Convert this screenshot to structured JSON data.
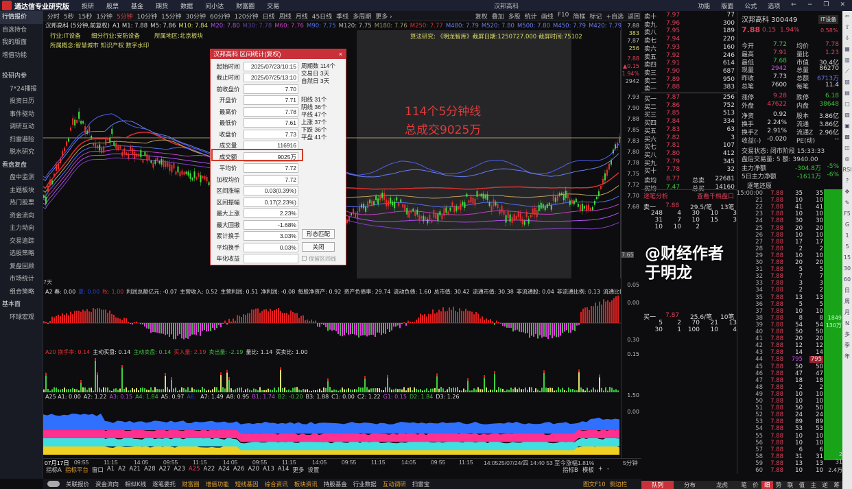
{
  "titlebar": {
    "app": "通达信专业研究版",
    "menus": [
      "投研",
      "股票",
      "基金",
      "期货",
      "数据",
      "问小达",
      "财富圈",
      "交易"
    ],
    "center": "汉邦高科",
    "right": [
      "功能",
      "版面",
      "公式",
      "选项"
    ]
  },
  "sidebar": [
    {
      "label": "行情报价",
      "type": "item",
      "active": true
    },
    {
      "label": "自选持仓",
      "type": "item"
    },
    {
      "label": "我的版面",
      "type": "item"
    },
    {
      "label": "增值功能",
      "type": "item"
    },
    {
      "label": "投研内参",
      "type": "header"
    },
    {
      "label": "7*24播报"
    },
    {
      "label": "投资日历"
    },
    {
      "label": "事件驱动"
    },
    {
      "label": "调研互动"
    },
    {
      "label": "扫雷避险"
    },
    {
      "label": "脱水研究"
    },
    {
      "label": "看盘复盘",
      "type": "header"
    },
    {
      "label": "盘中监测"
    },
    {
      "label": "主题板块"
    },
    {
      "label": "热门股票"
    },
    {
      "label": "资金流向"
    },
    {
      "label": "主力动向"
    },
    {
      "label": "交易追踪"
    },
    {
      "label": "选股策略"
    },
    {
      "label": "复盘回顾"
    },
    {
      "label": "市场统计"
    },
    {
      "label": "组合策略"
    },
    {
      "label": "基本面",
      "type": "header"
    },
    {
      "label": "环球宏观"
    }
  ],
  "periods": {
    "items": [
      "分时",
      "5秒",
      "15秒",
      "1分钟",
      "5分钟",
      "10分钟",
      "15分钟",
      "30分钟",
      "60分钟",
      "120分钟",
      "日线",
      "周线",
      "月线",
      "45日线",
      "季线",
      "多周期",
      "更多 ›"
    ],
    "selected": "5分钟"
  },
  "tools": [
    "复权",
    "叠加",
    "多股",
    "统计",
    "画线",
    "F10",
    "简框",
    "标记",
    "+自选",
    "返回"
  ],
  "infoline": [
    {
      "t": "汉邦高科 (5分钟,前复权)",
      "c": "#dddddd"
    },
    {
      "t": "A1 M1: 7.88",
      "c": "#dddddd"
    },
    {
      "t": "M5: 7.86",
      "c": "#dddddd"
    },
    {
      "t": "M10: 7.84",
      "c": "#d9d96a"
    },
    {
      "t": "M20: 7.80",
      "c": "#b050f0"
    },
    {
      "t": "M30: 7.78",
      "c": "#6040a0"
    },
    {
      "t": "M60: 7.76",
      "c": "#c040c0"
    },
    {
      "t": "M90: 7.75",
      "c": "#5070f0"
    },
    {
      "t": "M120: 7.75",
      "c": "#bbbbbb"
    },
    {
      "t": "M180: 7.76",
      "c": "#999966"
    },
    {
      "t": "M250: 7.77",
      "c": "#e03030"
    },
    {
      "t": "M480: 7.79",
      "c": "#6a7cf0"
    },
    {
      "t": "M520: 7.80",
      "c": "#6a7cf0"
    },
    {
      "t": "M500: 7.80",
      "c": "#6a7cf0"
    },
    {
      "t": "M450: 7.79",
      "c": "#6a7cf0"
    },
    {
      "t": "M420: 7.79",
      "c": "#6a7cf0"
    },
    {
      "t": "M400: 7.79",
      "c": "#6a7cf0"
    },
    {
      "t": "M380: 7",
      "c": "#6a7cf0"
    }
  ],
  "stockinfo": {
    "industry": "行业:IT设备",
    "sub_industry": "细分行业:安防设备",
    "region": "所属地区:北京板块",
    "concepts": "所属概念:智慧城市 知识产权 数字水印",
    "research": "算法研究: 《明龙智库》截屏日期:1250727.000 截屏时间:75102"
  },
  "annotation": {
    "line1": "114个5分钟线",
    "line2": "总成交9025万"
  },
  "price_axis": [
    "7.88",
    "383",
    "7.87",
    "256",
    "7.88",
    "▲0.15",
    "1.94%",
    "2942",
    "7.93",
    "7.90",
    "7.88",
    "7.85",
    "7.83",
    "7.80",
    "7.78",
    "7.75",
    "7.72",
    "7.70",
    "7.68",
    "7.65",
    "0.05",
    "0.00",
    "0.30",
    "0.15",
    "1.50",
    "0.00"
  ],
  "dialog": {
    "title": "汉邦高科 区间统计(复权)",
    "close": "×",
    "rows": [
      {
        "label": "起始时间",
        "value": "2025/07/23/10:15"
      },
      {
        "label": "截止时间",
        "value": "2025/07/25/13:10"
      },
      {
        "label": "前收盘价",
        "value": "7.70"
      },
      {
        "label": "开盘价",
        "value": "7.71"
      },
      {
        "label": "最高价",
        "value": "7.78"
      },
      {
        "label": "最低价",
        "value": "7.61"
      },
      {
        "label": "收盘价",
        "value": "7.73"
      },
      {
        "label": "成交量",
        "value": "116916"
      },
      {
        "label": "成交额",
        "value": "9025万"
      },
      {
        "label": "平均价",
        "value": "7.72"
      },
      {
        "label": "加权均价",
        "value": "7.72"
      },
      {
        "label": "区间涨幅",
        "value": "0.03(0.39%)"
      },
      {
        "label": "区间振幅",
        "value": "0.17(2.23%)"
      },
      {
        "label": "最大上涨",
        "value": "2.23%"
      },
      {
        "label": "最大回撤",
        "value": "-1.68%"
      },
      {
        "label": "累计换手",
        "value": "3.03%"
      },
      {
        "label": "平均换手",
        "value": "0.03%"
      },
      {
        "label": "年化收益",
        "value": ""
      }
    ],
    "side1": [
      "周期数 114个",
      "交易日 3天",
      "自然日 3天"
    ],
    "side2": [
      "阳线 31个",
      "阴线 36个",
      "平线 47个",
      "上涨 37个",
      "下跌 36个",
      "平盘 41个"
    ],
    "btn_match": "形态匹配",
    "btn_close": "关闭",
    "keep_line": "保留区间线"
  },
  "pane_note": "7天",
  "ind_a2": [
    {
      "t": "A2 春: 0.00",
      "c": "#dddddd"
    },
    {
      "t": "夏: 0.00",
      "c": "#2040e0"
    },
    {
      "t": "秋: 1.00",
      "c": "#e03030"
    },
    {
      "t": "利润总额亿元: -0.07",
      "c": "#dddddd"
    },
    {
      "t": "主营收入: 0.52",
      "c": "#dddddd"
    },
    {
      "t": "主营利润: 0.51",
      "c": "#dddddd"
    },
    {
      "t": "净利润: -0.08",
      "c": "#dddddd"
    },
    {
      "t": "每股净资产: 0.92",
      "c": "#dddddd"
    },
    {
      "t": "资产负债率: 29.74",
      "c": "#dddddd"
    },
    {
      "t": "流动负债: 1.60",
      "c": "#dddddd"
    },
    {
      "t": "总市值: 30.42",
      "c": "#dddddd"
    },
    {
      "t": "流通市值: 30.38",
      "c": "#dddddd"
    },
    {
      "t": "非流通股: 0.04",
      "c": "#dddddd"
    },
    {
      "t": "非流通比例: 0.13",
      "c": "#dddddd"
    },
    {
      "t": "流通比例: 99.87",
      "c": "#dddddd"
    }
  ],
  "ind_a20": [
    {
      "t": "A20 换手率: 0.14",
      "c": "#e03030"
    },
    {
      "t": "主动买盘: 0.14",
      "c": "#dddddd"
    },
    {
      "t": "主动卖盘: 0.14",
      "c": "#3fc13f"
    },
    {
      "t": "买入量: 2.19",
      "c": "#e03030"
    },
    {
      "t": "卖出量: -2.19",
      "c": "#3fc13f"
    },
    {
      "t": "量比: 1.14",
      "c": "#dddddd"
    },
    {
      "t": "买卖比: 1.00",
      "c": "#dddddd"
    }
  ],
  "ind_a25": [
    {
      "t": "A25 A1: 0.00",
      "c": "#dddddd"
    },
    {
      "t": "A2: 1.22",
      "c": "#dddddd"
    },
    {
      "t": "A3: 0.15",
      "c": "#c050e0"
    },
    {
      "t": "A4: 1.84",
      "c": "#3fc13f"
    },
    {
      "t": "A5: 0.97",
      "c": "#dddddd"
    },
    {
      "t": "A6: ",
      "c": "#2040e0"
    },
    {
      "t": "A7: 1.49",
      "c": "#dddddd"
    },
    {
      "t": "A8: 0.95",
      "c": "#dddddd"
    },
    {
      "t": "B1: 1.74",
      "c": "#c050e0"
    },
    {
      "t": "B2: -0.20",
      "c": "#3fc13f"
    },
    {
      "t": "B3: 1.88",
      "c": "#dddddd"
    },
    {
      "t": "C1: 0.00",
      "c": "#dddddd"
    },
    {
      "t": "C2: 1.22",
      "c": "#dddddd"
    },
    {
      "t": "G1: 0.15",
      "c": "#c050e0"
    },
    {
      "t": "D2: 1.84",
      "c": "#3fc13f"
    },
    {
      "t": "D3: 1.26",
      "c": "#dddddd"
    }
  ],
  "time_axis": [
    "07月17日",
    "09:55",
    "11:15",
    "14:05",
    "09:55",
    "11:15",
    "14:05",
    "09:55",
    "11:15",
    "14:05",
    "09:55",
    "11:15",
    "14:05",
    "09:55",
    "11:15",
    "14:0525/07/24/四 14:40 53 至今涨幅1.81%",
    "5分钟"
  ],
  "indicator_tabs": [
    "指标A",
    "指标平台",
    "窗口",
    "A1",
    "A2",
    "A21",
    "A28",
    "A27",
    "A23",
    "A25",
    "A22",
    "A24",
    "A26",
    "A20",
    "A13",
    "A14",
    "更多",
    "设置"
  ],
  "indicator_selected": "A25",
  "indicator_right": [
    "指标B",
    "模板",
    "+",
    "-"
  ],
  "bottom_toolbar": [
    {
      "t": "关联报价"
    },
    {
      "t": "资金流向"
    },
    {
      "t": "相似K线"
    },
    {
      "t": "逐笔委托"
    },
    {
      "t": "财富圈",
      "o": true
    },
    {
      "t": "增值功能",
      "o": true
    },
    {
      "t": "短线基因",
      "o": true
    },
    {
      "t": "综合资讯",
      "o": true
    },
    {
      "t": "板块资讯",
      "o": true
    },
    {
      "t": "持股基金"
    },
    {
      "t": "行业数据"
    },
    {
      "t": "互动调研",
      "o": true
    },
    {
      "t": "扫雷宝"
    }
  ],
  "bottom_right": [
    "图文F10",
    "侧边栏"
  ],
  "orderbook": {
    "asks": [
      [
        "卖十",
        "7.97",
        "77"
      ],
      [
        "卖九",
        "7.96",
        "300"
      ],
      [
        "卖八",
        "7.95",
        "189"
      ],
      [
        "卖七",
        "7.94",
        "220"
      ],
      [
        "卖六",
        "7.93",
        "160"
      ],
      [
        "卖五",
        "7.92",
        "246"
      ],
      [
        "卖四",
        "7.91",
        "614"
      ],
      [
        "卖三",
        "7.90",
        "687"
      ],
      [
        "卖二",
        "7.89",
        "950"
      ],
      [
        "卖一",
        "7.88",
        "383"
      ]
    ],
    "bids": [
      [
        "买一",
        "7.87",
        "256"
      ],
      [
        "买二",
        "7.86",
        "752"
      ],
      [
        "买三",
        "7.85",
        "513"
      ],
      [
        "买四",
        "7.84",
        "334"
      ],
      [
        "买五",
        "7.83",
        "63"
      ],
      [
        "买六",
        "7.82",
        "3"
      ],
      [
        "买七",
        "7.81",
        "107"
      ],
      [
        "买八",
        "7.80",
        "412"
      ],
      [
        "买九",
        "7.79",
        "345"
      ],
      [
        "买十",
        "7.78",
        "32"
      ]
    ],
    "avg": [
      [
        "卖均",
        "8.77",
        "总卖",
        "22681"
      ],
      [
        "买均",
        "7.47",
        "总买",
        "14160"
      ]
    ]
  },
  "quote": {
    "name": "汉邦高科 300449",
    "sector": "IT设备",
    "sector_pct": "0.58%",
    "price": "7.88",
    "change": "0.15",
    "pct": "1.94%",
    "stats": [
      [
        "今开",
        "7.72",
        "均价",
        "7.78"
      ],
      [
        "最高",
        "7.91",
        "量比",
        "1.23"
      ],
      [
        "最低",
        "7.68",
        "市值",
        "30.4亿"
      ],
      [
        "现量",
        "2942",
        "总量",
        "86270"
      ],
      [
        "昨收",
        "7.73",
        "总额",
        "6713万"
      ],
      [
        "总笔",
        "7600",
        "每笔",
        "11.4"
      ],
      [
        "涨停",
        "9.28",
        "跌停",
        "6.18"
      ],
      [
        "外盘",
        "47622",
        "内盘",
        "38648"
      ],
      [
        "净资",
        "0.92",
        "股本",
        "3.86亿"
      ],
      [
        "换手",
        "2.24%",
        "流通",
        "3.86亿"
      ],
      [
        "换手Z",
        "2.91%",
        "流通Z",
        "2.96亿"
      ],
      [
        "收益(-)",
        "-0.020",
        "PE(动)",
        "--"
      ]
    ],
    "trade_status": "交易状态: 闭市阶段 15:33:33",
    "after_hours": "盘后交易量: 5  额: 3940.00",
    "main_net": [
      "主力净额",
      "-304.8万",
      "-5%"
    ],
    "main_net_5d": [
      "5日主力净额",
      "-1611万",
      "-6%"
    ],
    "tick_title": "逐笔还原"
  },
  "analysis": {
    "title": "逐笔分析",
    "link": "查看千档盘口",
    "ask": [
      "卖一",
      "7.88",
      "29.5/笔",
      "13笔"
    ],
    "ask_rows": [
      [
        "248",
        "4",
        "30",
        "10",
        "3"
      ],
      [
        "31",
        "7",
        "10",
        "15",
        "3"
      ],
      [
        "10",
        "10",
        "2",
        "",
        ""
      ]
    ],
    "bid": [
      "买一",
      "7.87",
      "25.6/笔",
      "10笔"
    ],
    "bid_rows": [
      [
        "5",
        "2",
        "70",
        "21",
        "13"
      ],
      [
        "30",
        "1",
        "100",
        "10",
        "4"
      ]
    ]
  },
  "ticks": [
    [
      "15:00:00",
      "7.88",
      "35",
      "35"
    ],
    [
      "21",
      "7.88",
      "10",
      "10"
    ],
    [
      "22",
      "7.88",
      "41",
      "41"
    ],
    [
      "23",
      "7.88",
      "10",
      "10"
    ],
    [
      "24",
      "7.88",
      "30",
      "30"
    ],
    [
      "25",
      "7.88",
      "20",
      "20"
    ],
    [
      "26",
      "7.88",
      "10",
      "10"
    ],
    [
      "27",
      "7.88",
      "17",
      "17"
    ],
    [
      "28",
      "7.88",
      "2",
      "2"
    ],
    [
      "29",
      "7.88",
      "10",
      "10"
    ],
    [
      "30",
      "7.88",
      "20",
      "20"
    ],
    [
      "31",
      "7.88",
      "5",
      "5"
    ],
    [
      "32",
      "7.88",
      "7",
      "7"
    ],
    [
      "33",
      "7.88",
      "3",
      "3"
    ],
    [
      "34",
      "7.88",
      "2",
      "2"
    ],
    [
      "35",
      "7.88",
      "13",
      "13"
    ],
    [
      "36",
      "7.88",
      "5",
      "5"
    ],
    [
      "37",
      "7.88",
      "10",
      "10"
    ],
    [
      "38",
      "7.88",
      "8",
      "8"
    ],
    [
      "39",
      "7.88",
      "54",
      "54"
    ],
    [
      "40",
      "7.88",
      "50",
      "50"
    ],
    [
      "41",
      "7.88",
      "20",
      "20"
    ],
    [
      "42",
      "7.88",
      "12",
      "12"
    ],
    [
      "43",
      "7.88",
      "14",
      "14"
    ],
    [
      "44",
      "7.88",
      "795",
      "795"
    ],
    [
      "45",
      "7.88",
      "50",
      "50"
    ],
    [
      "46",
      "7.88",
      "47",
      "47"
    ],
    [
      "47",
      "7.88",
      "18",
      "18"
    ],
    [
      "48",
      "7.88",
      "2",
      "2"
    ],
    [
      "49",
      "7.88",
      "10",
      "10"
    ],
    [
      "50",
      "7.88",
      "10",
      "10"
    ],
    [
      "51",
      "7.88",
      "50",
      "50"
    ],
    [
      "52",
      "7.88",
      "24",
      "24"
    ],
    [
      "53",
      "7.88",
      "89",
      "89"
    ],
    [
      "54",
      "7.88",
      "53",
      "53"
    ],
    [
      "55",
      "7.88",
      "10",
      "10"
    ],
    [
      "56",
      "7.88",
      "10",
      "10"
    ],
    [
      "57",
      "7.88",
      "6",
      "6"
    ],
    [
      "58",
      "7.88",
      "31",
      "31"
    ],
    [
      "59",
      "7.88",
      "13",
      "13"
    ],
    [
      "60",
      "7.88",
      "10",
      "10"
    ]
  ],
  "greenbar": [
    "1849",
    "130万"
  ],
  "greenbar_low": [
    "2",
    "31",
    "2.4万"
  ],
  "right_tabs": [
    "队列",
    "分布",
    "龙虎",
    "笔",
    "价",
    "细",
    "势",
    "联",
    "值",
    "主",
    "逆",
    "筹"
  ],
  "right_tabs_selected": "细",
  "iconstrip": [
    "⇦",
    "⇧",
    "⇩",
    "▦",
    "▥",
    "⟋",
    "▨",
    "▤",
    "▢",
    "▧",
    "▣",
    "▩",
    "◫",
    "◎",
    "RSI",
    "?",
    "✥",
    "✎",
    "F5",
    "G",
    "1",
    "5",
    "15",
    "30",
    "60",
    "日",
    "周",
    "月",
    "N",
    "多",
    "季",
    "年"
  ],
  "watermark": "@财经作者于明龙",
  "colors": {
    "up": "#e0405a",
    "down": "#3fc13f",
    "accent": "#c8313a",
    "highlight": "#d23b2b"
  }
}
